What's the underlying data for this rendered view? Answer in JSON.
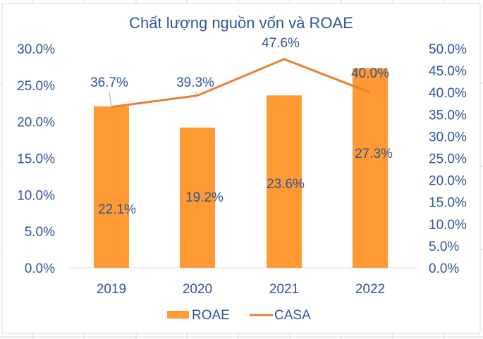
{
  "chart_data": {
    "type": "bar+line",
    "title": "Chất lượng nguồn vốn và ROAE",
    "categories": [
      "2019",
      "2020",
      "2021",
      "2022"
    ],
    "series": [
      {
        "name": "ROAE",
        "type": "bar",
        "axis": "left",
        "values": [
          22.1,
          19.2,
          23.6,
          27.3
        ],
        "labels": [
          "22.1%",
          "19.2%",
          "23.6%",
          "27.3%"
        ],
        "color": "#FF9933"
      },
      {
        "name": "CASA",
        "type": "line",
        "axis": "right",
        "values": [
          36.7,
          39.3,
          47.6,
          40.0
        ],
        "labels": [
          "36.7%",
          "39.3%",
          "47.6%",
          "40.0%"
        ],
        "color": "#ED7D31"
      }
    ],
    "left_axis": {
      "ylim": [
        0,
        30
      ],
      "ticks": [
        "0.0%",
        "5.0%",
        "10.0%",
        "15.0%",
        "20.0%",
        "25.0%",
        "30.0%"
      ]
    },
    "right_axis": {
      "ylim": [
        0,
        50
      ],
      "ticks": [
        "0.0%",
        "5.0%",
        "10.0%",
        "15.0%",
        "20.0%",
        "25.0%",
        "30.0%",
        "35.0%",
        "40.0%",
        "45.0%",
        "50.0%"
      ]
    },
    "grid": false,
    "legend": "bottom",
    "text_color": "#2F5597"
  }
}
